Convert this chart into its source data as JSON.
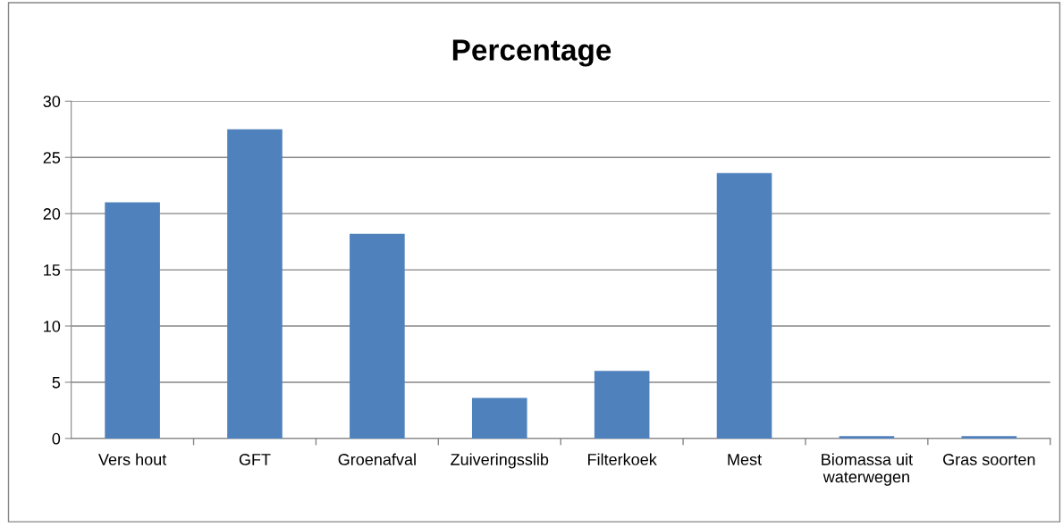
{
  "chart_data": {
    "type": "bar",
    "title": "Percentage",
    "categories": [
      "Vers hout",
      "GFT",
      "Groenafval",
      "Zuiveringsslib",
      "Filterkoek",
      "Mest",
      "Biomassa uit waterwegen",
      "Gras soorten"
    ],
    "values": [
      21.0,
      27.5,
      18.2,
      3.6,
      6.0,
      23.6,
      0.2,
      0.2
    ],
    "color": "#4f81bd",
    "ylim": [
      0,
      30
    ],
    "yticks": [
      0,
      5,
      10,
      15,
      20,
      25,
      30
    ],
    "grid": "y"
  }
}
